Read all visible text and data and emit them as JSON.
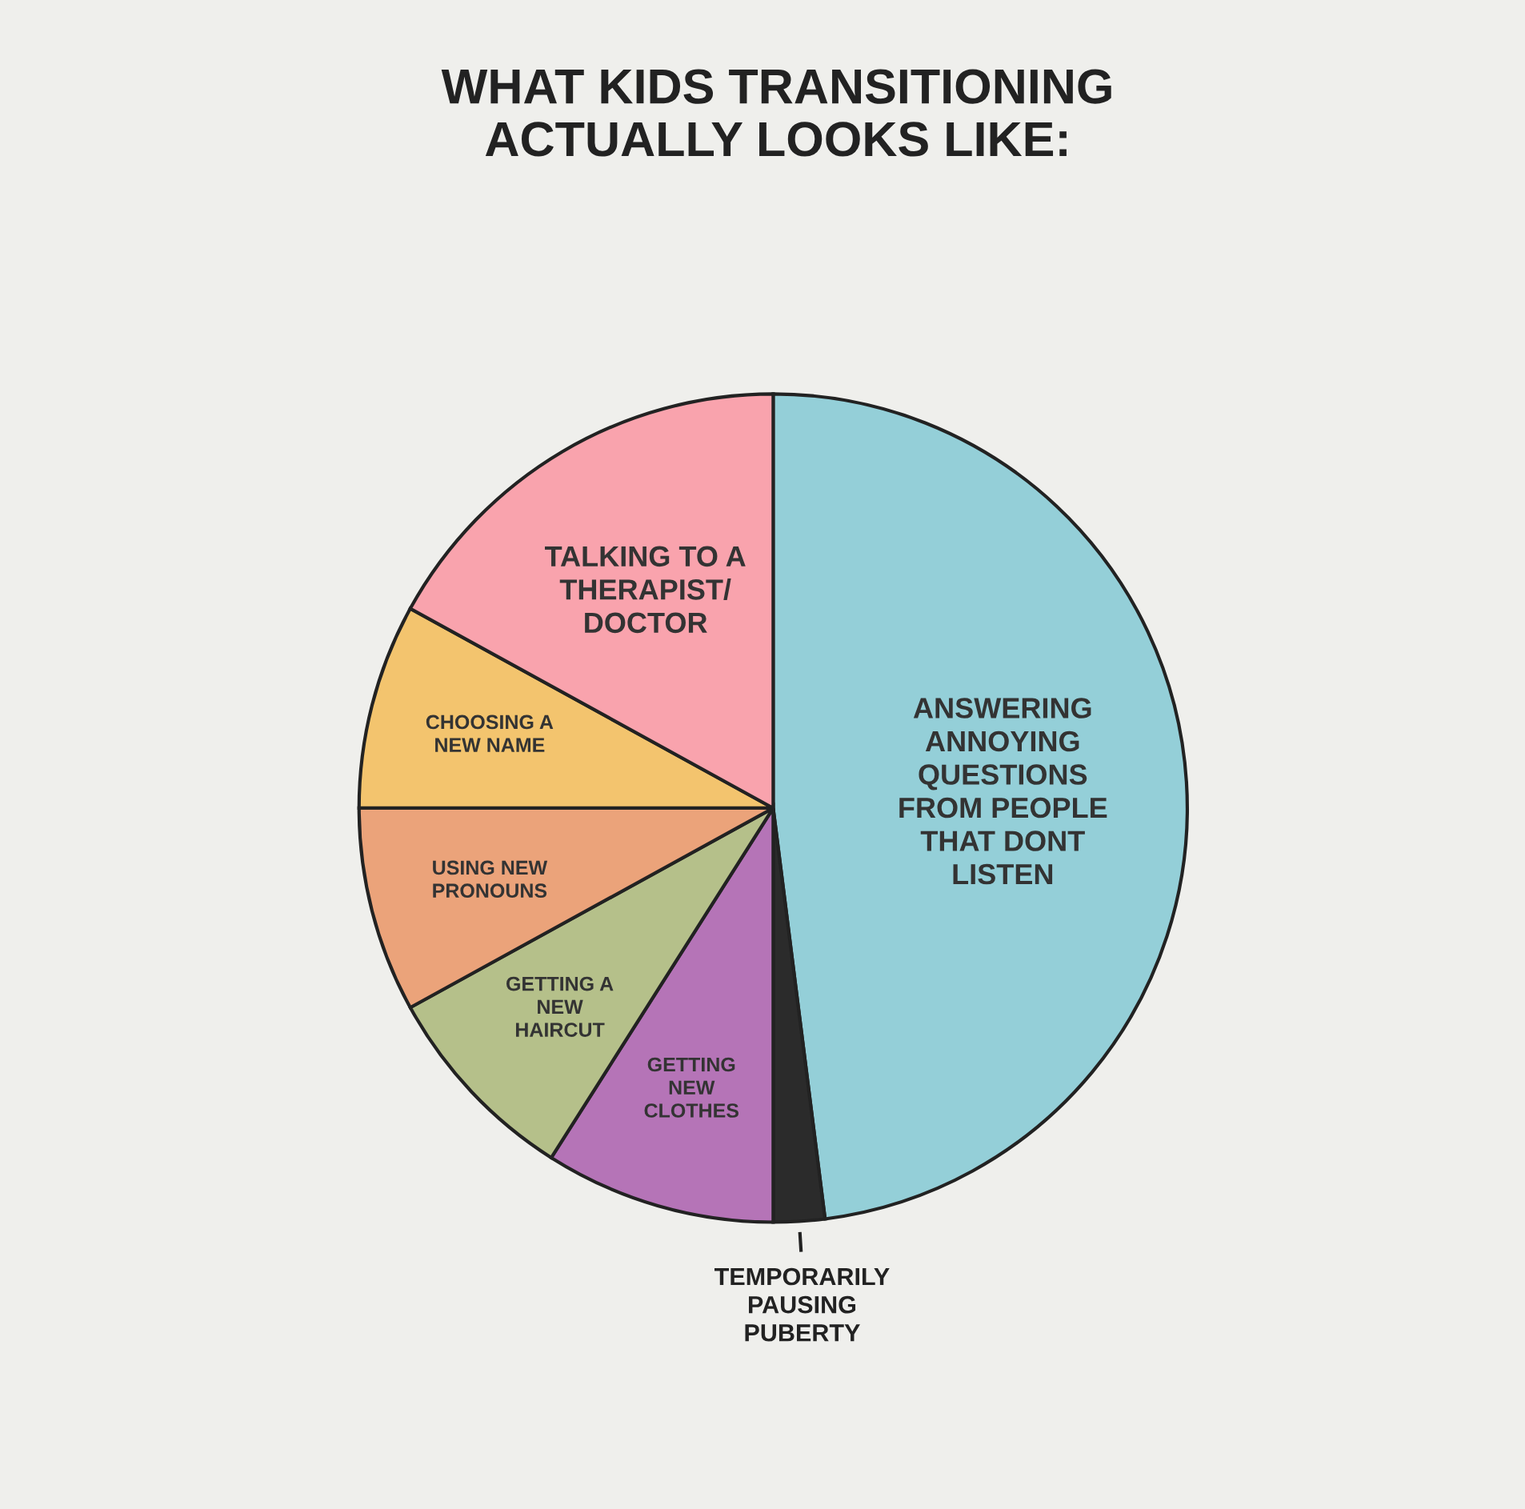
{
  "chart_data": {
    "type": "pie",
    "title": "WHAT KIDS TRANSITIONING\nACTUALLY LOOKS LIKE:",
    "categories": [
      "ANSWERING\nANNOYING\nQUESTIONS\nFROM PEOPLE\nTHAT DONT\nLISTEN",
      "TEMPORARILY\nPAUSING\nPUBERTY",
      "GETTING\nNEW\nCLOTHES",
      "GETTING A\nNEW\nHAIRCUT",
      "USING NEW\nPRONOUNS",
      "CHOOSING A\nNEW NAME",
      "TALKING TO A\nTHERAPIST/\nDOCTOR"
    ],
    "values": [
      48,
      2,
      9,
      8,
      8,
      8,
      17
    ],
    "colors": [
      "#94cfd8",
      "#2b2b2b",
      "#b574b7",
      "#b5c08a",
      "#eba37a",
      "#f3c46e",
      "#f9a3ad"
    ]
  }
}
